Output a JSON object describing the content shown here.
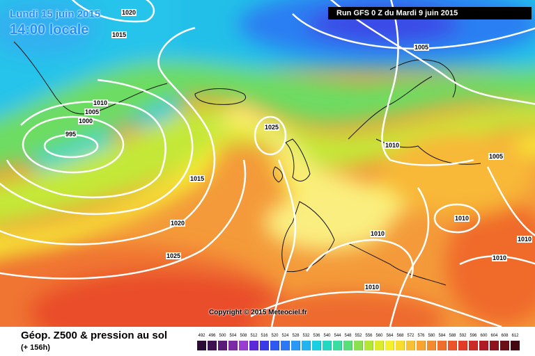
{
  "header": {
    "date": "Lundi 15 juin 2015",
    "time": "14:00 locale",
    "run": "Run GFS 0 Z du Mardi 9 juin 2015"
  },
  "copyright": "Copyright © 2015 Meteociel.fr",
  "footer": {
    "title": "Géop. Z500 & pression au sol",
    "subtitle": "(+ 156h)"
  },
  "isobars": [
    {
      "value": "1020"
    },
    {
      "value": "1015"
    },
    {
      "value": "1015"
    },
    {
      "value": "1010"
    },
    {
      "value": "1005"
    },
    {
      "value": "1000"
    },
    {
      "value": "995"
    },
    {
      "value": "1005"
    },
    {
      "value": "1025"
    },
    {
      "value": "1015"
    },
    {
      "value": "1020"
    },
    {
      "value": "1025"
    },
    {
      "value": "1010"
    },
    {
      "value": "1005"
    },
    {
      "value": "1010"
    },
    {
      "value": "1010"
    },
    {
      "value": "1010"
    },
    {
      "value": "1010"
    },
    {
      "value": "1010"
    }
  ],
  "scale": {
    "labels": [
      "492",
      "496",
      "500",
      "504",
      "508",
      "512",
      "516",
      "520",
      "524",
      "528",
      "532",
      "536",
      "540",
      "544",
      "548",
      "552",
      "556",
      "560",
      "564",
      "568",
      "572",
      "576",
      "580",
      "584",
      "588",
      "592",
      "596",
      "600",
      "604",
      "608",
      "612"
    ],
    "colors": [
      "#2a0c34",
      "#3e1250",
      "#5a1a78",
      "#7a2aa4",
      "#9a3cd0",
      "#5a2ad8",
      "#3a3ae6",
      "#2f58f0",
      "#2c78f4",
      "#2a98f4",
      "#22b4ee",
      "#1ccfe0",
      "#22d8c0",
      "#3adca0",
      "#5ade7a",
      "#8ae050",
      "#b4e634",
      "#dcec2a",
      "#f6f02c",
      "#f8dc30",
      "#f8c034",
      "#f7a434",
      "#f48a30",
      "#f06e2c",
      "#ea5428",
      "#e03c26",
      "#cc2a26",
      "#b01c24",
      "#8e1420",
      "#6a0e18",
      "#420810"
    ]
  }
}
